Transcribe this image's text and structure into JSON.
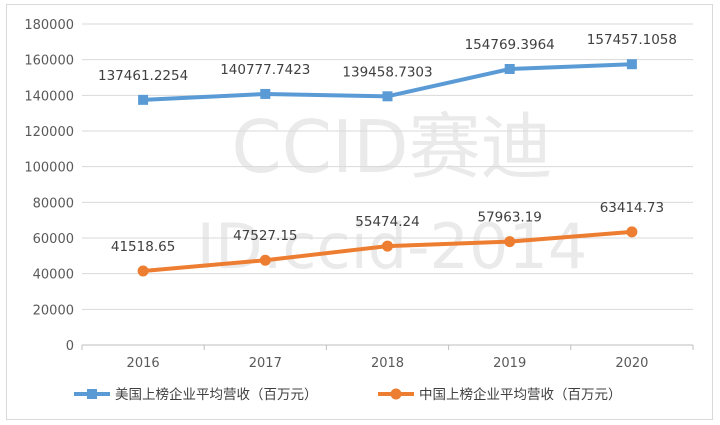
{
  "watermark": {
    "line1": "CCID赛迪",
    "line2": "ID.ccid-2014"
  },
  "chart_data": {
    "type": "line",
    "categories": [
      "2016",
      "2017",
      "2018",
      "2019",
      "2020"
    ],
    "ylim": [
      0,
      180000
    ],
    "yticks": [
      0,
      20000,
      40000,
      60000,
      80000,
      100000,
      120000,
      140000,
      160000,
      180000
    ],
    "grid": true,
    "legend_position": "bottom",
    "series": [
      {
        "name": "美国上榜企业平均营收（百万元）",
        "color": "#5b9bd5",
        "marker": "square",
        "values": [
          137461.2254,
          140777.7423,
          139458.7303,
          154769.3964,
          157457.1058
        ],
        "labels": [
          "137461.2254",
          "140777.7423",
          "139458.7303",
          "154769.3964",
          "157457.1058"
        ]
      },
      {
        "name": "中国上榜企业平均营收（百万元）",
        "color": "#ed7d31",
        "marker": "circle",
        "values": [
          41518.65,
          47527.15,
          55474.24,
          57963.19,
          63414.73
        ],
        "labels": [
          "41518.65",
          "47527.15",
          "55474.24",
          "57963.19",
          "63414.73"
        ]
      }
    ]
  }
}
